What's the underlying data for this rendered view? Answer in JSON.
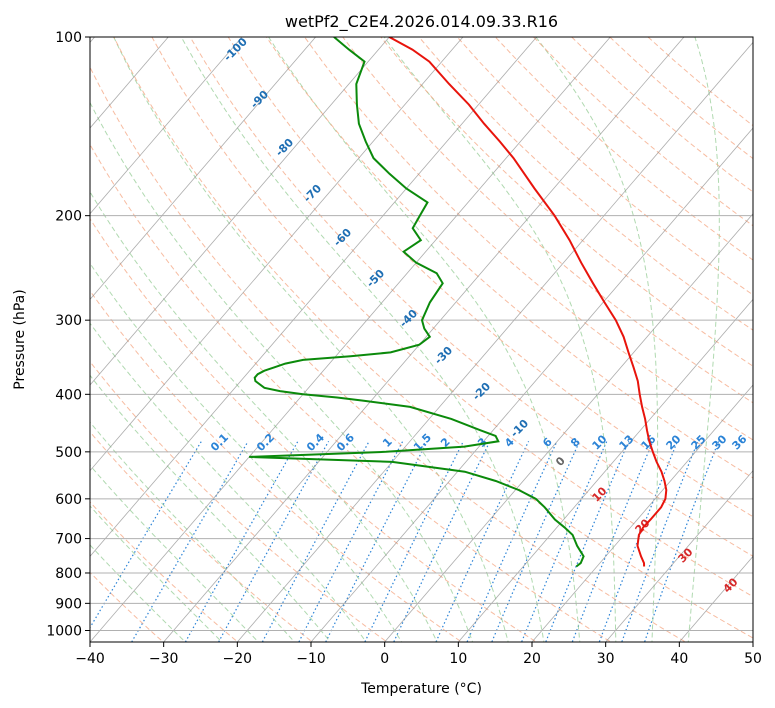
{
  "chart_data": {
    "type": "skew-t",
    "title": "wetPf2_C2E4.2026.014.09.33.R16",
    "xlabel": "Temperature (°C)",
    "ylabel": "Pressure (hPa)",
    "xlim": [
      -40,
      50
    ],
    "ylim_hPa": [
      1050,
      100
    ],
    "xticks": [
      -40,
      -30,
      -20,
      -10,
      0,
      10,
      20,
      30,
      40,
      50
    ],
    "xtick_labels": [
      "−40",
      "−30",
      "−20",
      "−10",
      "0",
      "10",
      "20",
      "30",
      "40",
      "50"
    ],
    "yticks": [
      100,
      200,
      300,
      400,
      500,
      600,
      700,
      800,
      900,
      1000
    ],
    "ytick_labels": [
      "100",
      "200",
      "300",
      "400",
      "500",
      "600",
      "700",
      "800",
      "900",
      "1000"
    ],
    "colors": {
      "temperature": "#e8140c",
      "dewpoint": "#0b8a0b",
      "dry_adiabat": "#f4a582",
      "moist_adiabat": "#8fc98f",
      "mixing_ratio": "#2b83d6",
      "isotherm": "#8a8a8a",
      "warm_label": "#d62728",
      "cold_label": "#1f6fb4",
      "freezing_label": "#666666"
    },
    "temperature_series": {
      "name": "Temperature",
      "pressure_hPa": [
        780,
        770,
        750,
        720,
        690,
        670,
        650,
        620,
        600,
        580,
        560,
        540,
        520,
        500,
        480,
        460,
        440,
        420,
        400,
        380,
        360,
        340,
        320,
        300,
        280,
        260,
        240,
        220,
        200,
        180,
        160,
        150,
        140,
        130,
        120,
        110,
        105,
        100
      ],
      "temp_C": [
        26.4,
        26.0,
        24.8,
        23.1,
        22.0,
        21.7,
        21.8,
        21.8,
        21.4,
        20.5,
        19.2,
        17.7,
        15.9,
        14.2,
        12.5,
        10.9,
        9.3,
        7.5,
        5.7,
        3.9,
        1.7,
        -0.7,
        -3.2,
        -6.2,
        -9.8,
        -13.6,
        -17.6,
        -21.8,
        -26.7,
        -32.6,
        -39.0,
        -42.8,
        -47.0,
        -51.3,
        -56.4,
        -61.7,
        -65.4,
        -70.0
      ]
    },
    "dewpoint_series": {
      "name": "Dewpoint",
      "pressure_hPa": [
        780,
        770,
        750,
        720,
        690,
        670,
        650,
        620,
        600,
        580,
        560,
        540,
        520,
        510,
        500,
        490,
        480,
        470,
        460,
        440,
        420,
        410,
        405,
        400,
        395,
        390,
        380,
        375,
        370,
        365,
        360,
        355,
        350,
        345,
        340,
        330,
        320,
        310,
        300,
        280,
        260,
        250,
        240,
        230,
        220,
        210,
        200,
        190,
        180,
        170,
        160,
        150,
        140,
        130,
        120,
        110,
        105,
        100
      ],
      "dewpoint_C": [
        17.2,
        17.4,
        17.0,
        14.9,
        13.0,
        11.0,
        8.8,
        6.0,
        3.8,
        0.5,
        -3.7,
        -9.0,
        -20.0,
        -40.0,
        -22.0,
        -12.0,
        -8.0,
        -9.0,
        -11.7,
        -17.0,
        -24.0,
        -31.0,
        -35.0,
        -40.0,
        -43.5,
        -46.0,
        -48.0,
        -48.5,
        -48.5,
        -48.0,
        -47.0,
        -46.0,
        -44.0,
        -38.0,
        -33.0,
        -30.0,
        -29.5,
        -31.2,
        -32.5,
        -33.5,
        -34.0,
        -36.0,
        -40.0,
        -43.0,
        -42.0,
        -44.5,
        -45.0,
        -45.5,
        -50.0,
        -54.0,
        -58.0,
        -61.0,
        -64.0,
        -66.5,
        -69.0,
        -70.5,
        -74.0,
        -77.5
      ]
    },
    "mixing_ratio_labels": [
      "0.1",
      "0.2",
      "0.4",
      "0.6",
      "1",
      "1.5",
      "2",
      "3",
      "4",
      "6",
      "8",
      "10",
      "13",
      "16",
      "20",
      "25",
      "30",
      "36"
    ],
    "isotherm_labels": [
      "-100",
      "-90",
      "-80",
      "-70",
      "-60",
      "-50",
      "-40",
      "-30",
      "-20",
      "-10",
      "0",
      "10",
      "20",
      "30",
      "40"
    ]
  }
}
